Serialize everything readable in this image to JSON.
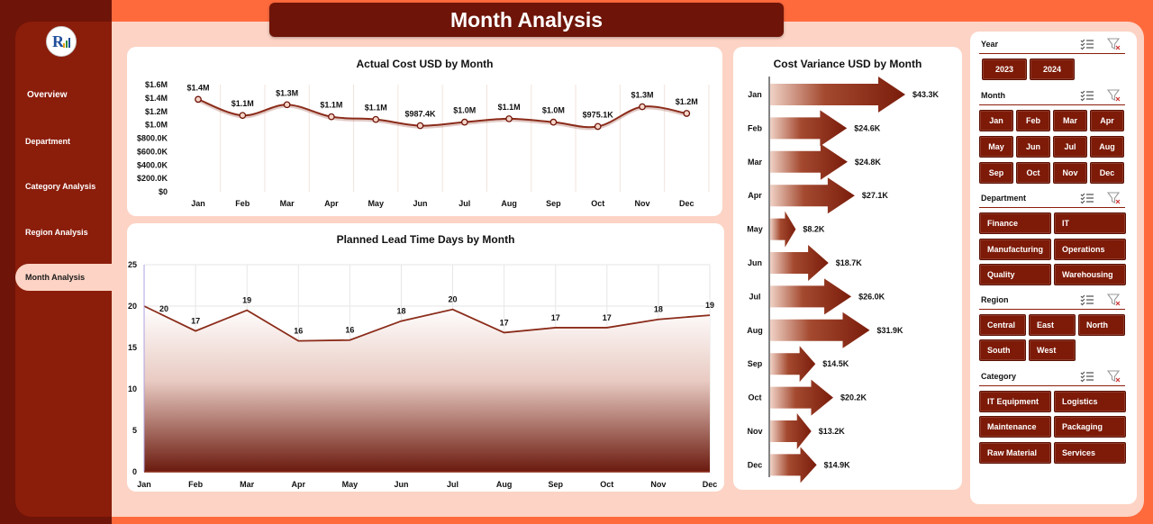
{
  "title": "Month Analysis",
  "nav": {
    "overview": "Overview",
    "department": "Department",
    "category": "Category Analysis",
    "region": "Region Analysis",
    "month": "Month Analysis"
  },
  "colors": {
    "accent": "#8b1d0b",
    "dark": "#6e1408",
    "frame": "#ff6a3d",
    "panel": "#fcd3c4"
  },
  "slicers": {
    "year": {
      "title": "Year",
      "items": [
        "2023",
        "2024"
      ]
    },
    "month": {
      "title": "Month",
      "items": [
        "Jan",
        "Feb",
        "Mar",
        "Apr",
        "May",
        "Jun",
        "Jul",
        "Aug",
        "Sep",
        "Oct",
        "Nov",
        "Dec"
      ]
    },
    "department": {
      "title": "Department",
      "items": [
        "Finance",
        "IT",
        "Manufacturing",
        "Operations",
        "Quality",
        "Warehousing"
      ]
    },
    "region": {
      "title": "Region",
      "items": [
        "Central",
        "East",
        "North",
        "South",
        "West"
      ]
    },
    "category": {
      "title": "Category",
      "items": [
        "IT Equipment",
        "Logistics",
        "Maintenance",
        "Packaging",
        "Raw Material",
        "Services"
      ]
    }
  },
  "chart_data": [
    {
      "type": "line",
      "title": "Actual Cost USD by Month",
      "categories": [
        "Jan",
        "Feb",
        "Mar",
        "Apr",
        "May",
        "Jun",
        "Jul",
        "Aug",
        "Sep",
        "Oct",
        "Nov",
        "Dec"
      ],
      "values": [
        1380000,
        1140000,
        1300000,
        1120000,
        1080000,
        987400,
        1040000,
        1090000,
        1040000,
        975100,
        1270000,
        1170000
      ],
      "data_labels": [
        "$1.4M",
        "$1.1M",
        "$1.3M",
        "$1.1M",
        "$1.1M",
        "$987.4K",
        "$1.0M",
        "$1.1M",
        "$1.0M",
        "$975.1K",
        "$1.3M",
        "$1.2M"
      ],
      "y_ticks": [
        "$0",
        "$200.0K",
        "$400.0K",
        "$600.0K",
        "$800.0K",
        "$1.0M",
        "$1.2M",
        "$1.4M",
        "$1.6M"
      ],
      "ylim": [
        0,
        1600000
      ]
    },
    {
      "type": "area",
      "title": "Planned Lead Time Days by Month",
      "categories": [
        "Jan",
        "Feb",
        "Mar",
        "Apr",
        "May",
        "Jun",
        "Jul",
        "Aug",
        "Sep",
        "Oct",
        "Nov",
        "Dec"
      ],
      "values": [
        20,
        17,
        19.5,
        15.8,
        15.9,
        18.2,
        19.6,
        16.8,
        17.4,
        17.4,
        18.4,
        18.9
      ],
      "data_labels": [
        "20",
        "17",
        "19",
        "16",
        "16",
        "18",
        "20",
        "17",
        "17",
        "17",
        "18",
        "19"
      ],
      "y_ticks": [
        "0",
        "5",
        "10",
        "15",
        "20",
        "25"
      ],
      "ylim": [
        0,
        25
      ]
    },
    {
      "type": "bar",
      "orientation": "horizontal",
      "title": "Cost Variance USD by Month",
      "categories": [
        "Jan",
        "Feb",
        "Mar",
        "Apr",
        "May",
        "Jun",
        "Jul",
        "Aug",
        "Sep",
        "Oct",
        "Nov",
        "Dec"
      ],
      "values": [
        43300,
        24600,
        24800,
        27100,
        8200,
        18700,
        26000,
        31900,
        14500,
        20200,
        13200,
        14900
      ],
      "data_labels": [
        "$43.3K",
        "$24.6K",
        "$24.8K",
        "$27.1K",
        "$8.2K",
        "$18.7K",
        "$26.0K",
        "$31.9K",
        "$14.5K",
        "$20.2K",
        "$13.2K",
        "$14.9K"
      ]
    }
  ]
}
